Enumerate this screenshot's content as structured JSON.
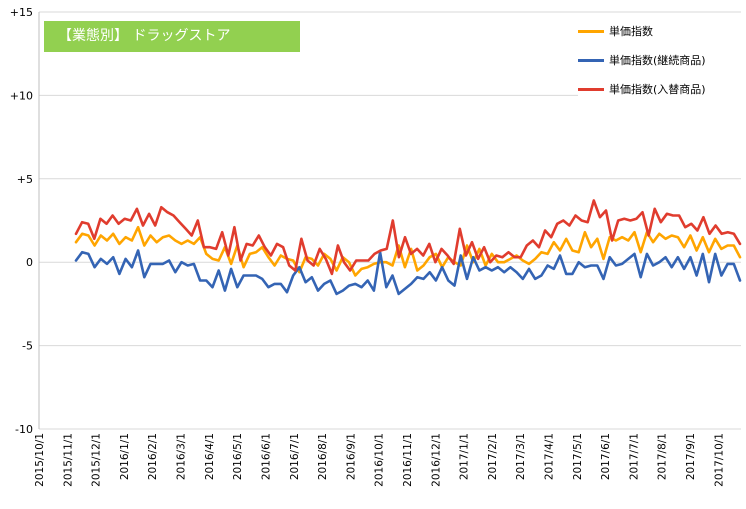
{
  "chart_data": {
    "type": "line",
    "title": "【業態別】 ドラッグストア",
    "ylim": [
      -10,
      15
    ],
    "y_ticks": [
      "+15",
      "+10",
      "+5",
      "0",
      "-5",
      "-10"
    ],
    "y_tick_values": [
      15,
      10,
      5,
      0,
      -5,
      -10
    ],
    "x_tick_labels": [
      "2015/10/1",
      "2015/11/1",
      "2015/12/1",
      "2016/1/1",
      "2016/2/1",
      "2016/3/1",
      "2016/4/1",
      "2016/5/1",
      "2016/6/1",
      "2016/7/1",
      "2016/8/1",
      "2016/9/1",
      "2016/10/1",
      "2016/11/1",
      "2016/12/1",
      "2017/1/1",
      "2017/2/1",
      "2017/3/1",
      "2017/4/1",
      "2017/5/1",
      "2017/6/1",
      "2017/7/1",
      "2017/8/1",
      "2017/9/1",
      "2017/10/1"
    ],
    "grid": "horizontal",
    "legend_position": "top-right",
    "series": [
      {
        "name": "単価指数",
        "color": "#ffa500",
        "values": [
          1.2,
          1.7,
          1.6,
          1.0,
          1.6,
          1.3,
          1.7,
          1.1,
          1.5,
          1.3,
          2.1,
          1.0,
          1.6,
          1.2,
          1.5,
          1.6,
          1.3,
          1.1,
          1.3,
          1.1,
          1.5,
          0.5,
          0.2,
          0.1,
          0.9,
          -0.1,
          1.0,
          -0.3,
          0.5,
          0.6,
          0.9,
          0.3,
          -0.2,
          0.4,
          0.2,
          0.1,
          -0.6,
          0.3,
          0.2,
          -0.2,
          0.5,
          0.2,
          -0.5,
          0.3,
          0.0,
          -0.8,
          -0.4,
          -0.3,
          -0.1,
          0.0,
          0.0,
          -0.2,
          1.0,
          -0.3,
          0.8,
          -0.5,
          -0.2,
          0.3,
          0.5,
          -0.3,
          0.3,
          0.0,
          -0.2,
          1.0,
          0.0,
          0.8,
          -0.2,
          0.5,
          0.0,
          0.0,
          0.2,
          0.4,
          0.1,
          -0.1,
          0.2,
          0.6,
          0.5,
          1.2,
          0.7,
          1.4,
          0.7,
          0.6,
          1.8,
          0.9,
          1.4,
          0.2,
          1.5,
          1.3,
          1.5,
          1.3,
          1.8,
          0.6,
          1.8,
          1.2,
          1.7,
          1.4,
          1.6,
          1.5,
          0.9,
          1.6,
          0.7,
          1.5,
          0.6,
          1.4,
          0.8,
          1.0,
          1.0,
          0.3
        ]
      },
      {
        "name": "単価指数(継続商品)",
        "color": "#3464b4",
        "values": [
          0.1,
          0.6,
          0.5,
          -0.3,
          0.2,
          -0.1,
          0.3,
          -0.7,
          0.2,
          -0.3,
          0.7,
          -0.9,
          -0.1,
          -0.1,
          -0.1,
          0.1,
          -0.6,
          0.0,
          -0.2,
          -0.1,
          -1.1,
          -1.1,
          -1.5,
          -0.5,
          -1.7,
          -0.4,
          -1.5,
          -0.8,
          -0.8,
          -0.8,
          -1.0,
          -1.5,
          -1.3,
          -1.3,
          -1.8,
          -0.8,
          -0.3,
          -1.2,
          -0.9,
          -1.7,
          -1.3,
          -1.1,
          -1.9,
          -1.7,
          -1.4,
          -1.3,
          -1.5,
          -1.1,
          -1.7,
          0.6,
          -1.5,
          -0.8,
          -1.9,
          -1.6,
          -1.3,
          -0.9,
          -1.0,
          -0.6,
          -1.1,
          -0.3,
          -1.1,
          -1.4,
          0.4,
          -1.0,
          0.3,
          -0.5,
          -0.3,
          -0.5,
          -0.3,
          -0.6,
          -0.3,
          -0.6,
          -1.0,
          -0.4,
          -1.0,
          -0.8,
          -0.2,
          -0.4,
          0.4,
          -0.7,
          -0.7,
          0.0,
          -0.3,
          -0.2,
          -0.2,
          -1.0,
          0.3,
          -0.2,
          -0.1,
          0.2,
          0.5,
          -0.9,
          0.5,
          -0.2,
          0.0,
          0.3,
          -0.3,
          0.3,
          -0.4,
          0.3,
          -0.8,
          0.5,
          -1.2,
          0.5,
          -0.8,
          -0.1,
          -0.1,
          -1.1
        ]
      },
      {
        "name": "単価指数(入替商品)",
        "color": "#e03c2e",
        "values": [
          1.7,
          2.4,
          2.3,
          1.4,
          2.6,
          2.3,
          2.8,
          2.3,
          2.6,
          2.5,
          3.2,
          2.2,
          2.9,
          2.2,
          3.3,
          3.0,
          2.8,
          2.4,
          2.0,
          1.6,
          2.5,
          0.9,
          0.9,
          0.8,
          1.8,
          0.4,
          2.1,
          0.1,
          1.1,
          1.0,
          1.6,
          0.9,
          0.4,
          1.1,
          0.9,
          -0.2,
          -0.5,
          1.4,
          0.1,
          -0.2,
          0.8,
          0.2,
          -0.7,
          1.0,
          0.0,
          -0.5,
          0.1,
          0.1,
          0.1,
          0.5,
          0.7,
          0.8,
          2.5,
          0.3,
          1.5,
          0.5,
          0.8,
          0.4,
          1.1,
          0.0,
          0.8,
          0.4,
          -0.1,
          2.0,
          0.4,
          1.2,
          0.2,
          0.9,
          0.0,
          0.4,
          0.3,
          0.6,
          0.3,
          0.3,
          1.0,
          1.3,
          0.9,
          1.9,
          1.5,
          2.3,
          2.5,
          2.2,
          2.8,
          2.5,
          2.4,
          3.7,
          2.7,
          3.1,
          1.3,
          2.5,
          2.6,
          2.5,
          2.6,
          3.0,
          1.6,
          3.2,
          2.4,
          2.9,
          2.8,
          2.8,
          2.1,
          2.3,
          1.9,
          2.7,
          1.7,
          2.2,
          1.7,
          1.8,
          1.7,
          1.1
        ]
      }
    ]
  }
}
